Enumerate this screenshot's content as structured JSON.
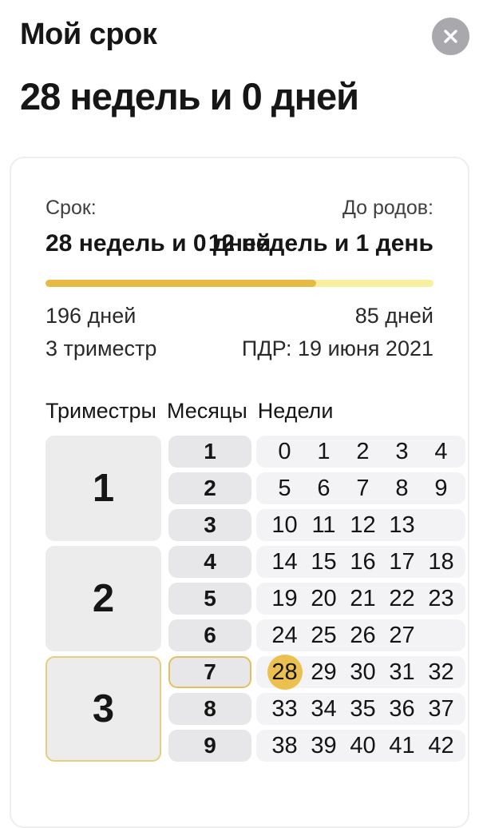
{
  "colors": {
    "accent": "#ecc04f",
    "progress_fill": "#e7ba43",
    "progress_track": "#f8efa0",
    "active_border": "#e4bf62",
    "tri_active_border": "#e9cd7f",
    "tri_gray": "#ececed",
    "month_gray": "#e7e7e9",
    "week_gray": "#f3f3f5",
    "close_bg": "#a8a8ad"
  },
  "header": {
    "title": "Мой срок",
    "subtitle": "28 недель и 0 дней"
  },
  "card": {
    "term_label": "Срок:",
    "until_label": "До родов:",
    "term_value": "28 недель и 0 дней",
    "until_value": "12 недель и 1 день",
    "progress_percent": 69.75,
    "term_days": "196 дней",
    "until_days": "85 дней",
    "trimester_text": "3 триместр",
    "due_date": "ПДР: 19 июня 2021"
  },
  "table": {
    "tabs": [
      "Триместры",
      "Месяцы",
      "Недели"
    ],
    "current_week": 28,
    "trimesters": [
      {
        "label": "1",
        "active": false,
        "months": [
          {
            "label": "1",
            "active": false,
            "weeks": [
              0,
              1,
              2,
              3,
              4
            ]
          },
          {
            "label": "2",
            "active": false,
            "weeks": [
              5,
              6,
              7,
              8,
              9
            ]
          },
          {
            "label": "3",
            "active": false,
            "weeks": [
              10,
              11,
              12,
              13
            ]
          }
        ]
      },
      {
        "label": "2",
        "active": false,
        "months": [
          {
            "label": "4",
            "active": false,
            "weeks": [
              14,
              15,
              16,
              17,
              18
            ]
          },
          {
            "label": "5",
            "active": false,
            "weeks": [
              19,
              20,
              21,
              22,
              23
            ]
          },
          {
            "label": "6",
            "active": false,
            "weeks": [
              24,
              25,
              26,
              27
            ]
          }
        ]
      },
      {
        "label": "3",
        "active": true,
        "months": [
          {
            "label": "7",
            "active": true,
            "weeks": [
              28,
              29,
              30,
              31,
              32
            ]
          },
          {
            "label": "8",
            "active": false,
            "weeks": [
              33,
              34,
              35,
              36,
              37
            ]
          },
          {
            "label": "9",
            "active": false,
            "weeks": [
              38,
              39,
              40,
              41,
              42
            ]
          }
        ]
      }
    ]
  }
}
